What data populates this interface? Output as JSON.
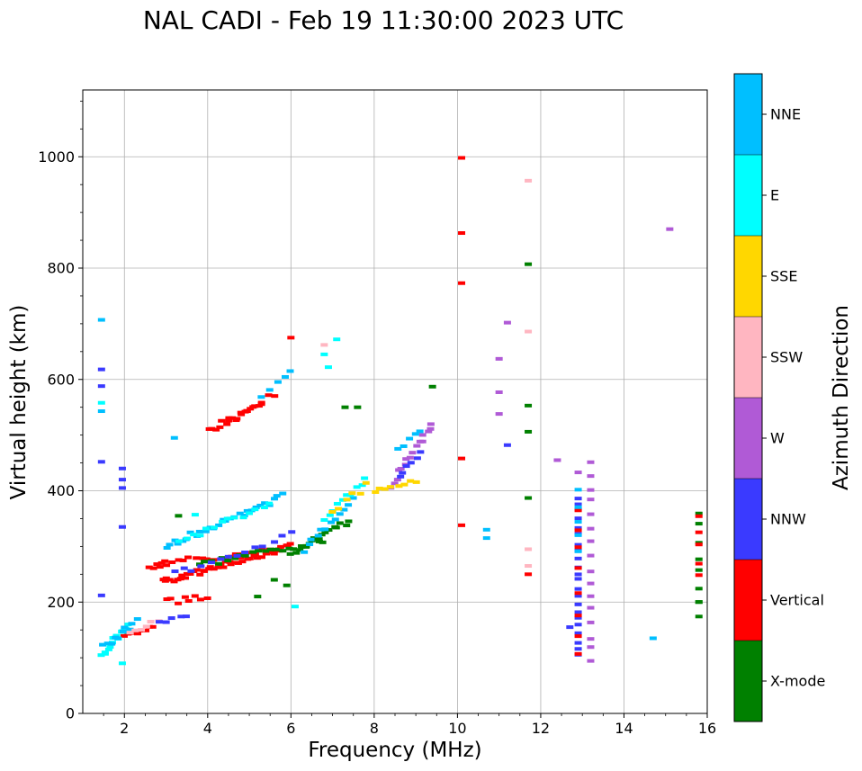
{
  "chart_data": {
    "type": "scatter",
    "title": "NAL CADI - Feb 19 11:30:00 2023 UTC",
    "xlabel": "Frequency (MHz)",
    "ylabel": "Virtual height (km)",
    "xlim": [
      1,
      16
    ],
    "ylim": [
      0,
      1120
    ],
    "xticks": [
      2,
      4,
      6,
      8,
      10,
      12,
      14,
      16
    ],
    "yticks": [
      0,
      200,
      400,
      600,
      800,
      1000
    ],
    "grid": true,
    "colorbar": {
      "label": "Azimuth Direction",
      "categories": [
        {
          "name": "X-mode",
          "color": "#008000"
        },
        {
          "name": "Vertical",
          "color": "#ff0000"
        },
        {
          "name": "NNW",
          "color": "#3a3aff"
        },
        {
          "name": "W",
          "color": "#b05ad6"
        },
        {
          "name": "SSW",
          "color": "#ffb6c1"
        },
        {
          "name": "SSE",
          "color": "#ffd700"
        },
        {
          "name": "E",
          "color": "#00ffff"
        },
        {
          "name": "NNE",
          "color": "#00bfff"
        }
      ]
    },
    "traces": [
      {
        "label": "Vertical",
        "x0": 2.0,
        "y0": 145,
        "x1": 2.7,
        "y1": 155,
        "n": 8
      },
      {
        "label": "E",
        "x0": 1.45,
        "y0": 105,
        "x1": 2.1,
        "y1": 160,
        "n": 14
      },
      {
        "label": "NNE",
        "x0": 1.5,
        "y0": 120,
        "x1": 2.3,
        "y1": 165,
        "n": 10
      },
      {
        "label": "SSW",
        "x0": 2.1,
        "y0": 150,
        "x1": 2.8,
        "y1": 165,
        "n": 6
      },
      {
        "label": "Vertical",
        "x0": 2.9,
        "y0": 235,
        "x1": 6.0,
        "y1": 300,
        "n": 45
      },
      {
        "label": "Vertical",
        "x0": 3.0,
        "y0": 270,
        "x1": 5.7,
        "y1": 295,
        "n": 20
      },
      {
        "label": "Vertical",
        "x0": 2.6,
        "y0": 260,
        "x1": 3.0,
        "y1": 270,
        "n": 6
      },
      {
        "label": "NNE",
        "x0": 3.0,
        "y0": 300,
        "x1": 5.8,
        "y1": 390,
        "n": 28
      },
      {
        "label": "E",
        "x0": 3.3,
        "y0": 310,
        "x1": 5.5,
        "y1": 375,
        "n": 14
      },
      {
        "label": "X-mode",
        "x0": 3.8,
        "y0": 265,
        "x1": 6.8,
        "y1": 310,
        "n": 22
      },
      {
        "label": "X-mode",
        "x0": 6.0,
        "y0": 290,
        "x1": 7.4,
        "y1": 345,
        "n": 16
      },
      {
        "label": "NNW",
        "x0": 3.2,
        "y0": 250,
        "x1": 6.0,
        "y1": 320,
        "n": 14
      },
      {
        "label": "NNE",
        "x0": 6.3,
        "y0": 290,
        "x1": 7.5,
        "y1": 385,
        "n": 12
      },
      {
        "label": "E",
        "x0": 6.8,
        "y0": 350,
        "x1": 7.8,
        "y1": 420,
        "n": 10
      },
      {
        "label": "SSE",
        "x0": 7.0,
        "y0": 360,
        "x1": 7.8,
        "y1": 410,
        "n": 6
      },
      {
        "label": "Vertical",
        "x0": 3.0,
        "y0": 200,
        "x1": 4.0,
        "y1": 210,
        "n": 8
      },
      {
        "label": "NNW",
        "x0": 2.8,
        "y0": 165,
        "x1": 3.5,
        "y1": 180,
        "n": 5
      },
      {
        "label": "Vertical",
        "x0": 4.0,
        "y0": 505,
        "x1": 5.3,
        "y1": 560,
        "n": 16
      },
      {
        "label": "Vertical",
        "x0": 4.5,
        "y0": 525,
        "x1": 5.6,
        "y1": 575,
        "n": 8
      },
      {
        "label": "NNE",
        "x0": 5.3,
        "y0": 570,
        "x1": 6.0,
        "y1": 610,
        "n": 5
      },
      {
        "label": "W",
        "x0": 8.4,
        "y0": 410,
        "x1": 9.4,
        "y1": 520,
        "n": 16
      },
      {
        "label": "SSE",
        "x0": 8.0,
        "y0": 395,
        "x1": 9.0,
        "y1": 420,
        "n": 8
      },
      {
        "label": "NNW",
        "x0": 8.6,
        "y0": 430,
        "x1": 9.1,
        "y1": 470,
        "n": 6
      },
      {
        "label": "NNE",
        "x0": 8.6,
        "y0": 470,
        "x1": 9.1,
        "y1": 510,
        "n": 5
      },
      {
        "label": "NNW",
        "x0": 12.9,
        "y0": 100,
        "x1": 12.9,
        "y1": 390,
        "n": 22
      },
      {
        "label": "Vertical",
        "x0": 12.9,
        "y0": 105,
        "x1": 12.9,
        "y1": 370,
        "n": 8
      },
      {
        "label": "W",
        "x0": 13.2,
        "y0": 90,
        "x1": 13.2,
        "y1": 455,
        "n": 16
      },
      {
        "label": "NNE",
        "x0": 12.9,
        "y0": 290,
        "x1": 12.9,
        "y1": 400,
        "n": 5
      },
      {
        "label": "X-mode",
        "x0": 15.8,
        "y0": 170,
        "x1": 15.8,
        "y1": 365,
        "n": 8
      },
      {
        "label": "Vertical",
        "x0": 15.8,
        "y0": 245,
        "x1": 15.8,
        "y1": 355,
        "n": 5
      }
    ],
    "points": [
      {
        "x": 1.45,
        "y": 707,
        "label": "NNE"
      },
      {
        "x": 1.45,
        "y": 618,
        "label": "NNW"
      },
      {
        "x": 1.45,
        "y": 588,
        "label": "NNW"
      },
      {
        "x": 1.45,
        "y": 558,
        "label": "E"
      },
      {
        "x": 1.45,
        "y": 543,
        "label": "NNE"
      },
      {
        "x": 1.45,
        "y": 452,
        "label": "NNW"
      },
      {
        "x": 1.45,
        "y": 212,
        "label": "NNW"
      },
      {
        "x": 1.95,
        "y": 440,
        "label": "NNW"
      },
      {
        "x": 1.95,
        "y": 420,
        "label": "NNW"
      },
      {
        "x": 1.95,
        "y": 405,
        "label": "NNW"
      },
      {
        "x": 1.95,
        "y": 335,
        "label": "NNW"
      },
      {
        "x": 1.95,
        "y": 90,
        "label": "E"
      },
      {
        "x": 10.1,
        "y": 998,
        "label": "Vertical"
      },
      {
        "x": 10.1,
        "y": 863,
        "label": "Vertical"
      },
      {
        "x": 10.1,
        "y": 773,
        "label": "Vertical"
      },
      {
        "x": 10.1,
        "y": 458,
        "label": "Vertical"
      },
      {
        "x": 10.1,
        "y": 338,
        "label": "Vertical"
      },
      {
        "x": 11.7,
        "y": 957,
        "label": "SSW"
      },
      {
        "x": 11.7,
        "y": 807,
        "label": "X-mode"
      },
      {
        "x": 11.2,
        "y": 702,
        "label": "W"
      },
      {
        "x": 11.7,
        "y": 686,
        "label": "SSW"
      },
      {
        "x": 11.0,
        "y": 637,
        "label": "W"
      },
      {
        "x": 11.0,
        "y": 577,
        "label": "W"
      },
      {
        "x": 11.7,
        "y": 553,
        "label": "X-mode"
      },
      {
        "x": 11.0,
        "y": 538,
        "label": "W"
      },
      {
        "x": 11.7,
        "y": 506,
        "label": "X-mode"
      },
      {
        "x": 11.2,
        "y": 482,
        "label": "NNW"
      },
      {
        "x": 9.4,
        "y": 587,
        "label": "X-mode"
      },
      {
        "x": 12.4,
        "y": 455,
        "label": "W"
      },
      {
        "x": 12.9,
        "y": 433,
        "label": "W"
      },
      {
        "x": 11.7,
        "y": 387,
        "label": "X-mode"
      },
      {
        "x": 10.7,
        "y": 330,
        "label": "NNE"
      },
      {
        "x": 10.7,
        "y": 315,
        "label": "NNE"
      },
      {
        "x": 11.7,
        "y": 295,
        "label": "SSW"
      },
      {
        "x": 11.7,
        "y": 265,
        "label": "SSW"
      },
      {
        "x": 11.7,
        "y": 250,
        "label": "Vertical"
      },
      {
        "x": 12.7,
        "y": 155,
        "label": "NNW"
      },
      {
        "x": 14.7,
        "y": 135,
        "label": "NNE"
      },
      {
        "x": 15.1,
        "y": 870,
        "label": "W"
      },
      {
        "x": 15.8,
        "y": 200,
        "label": "X-mode"
      },
      {
        "x": 6.0,
        "y": 675,
        "label": "Vertical"
      },
      {
        "x": 6.8,
        "y": 662,
        "label": "SSW"
      },
      {
        "x": 7.1,
        "y": 672,
        "label": "E"
      },
      {
        "x": 6.8,
        "y": 645,
        "label": "E"
      },
      {
        "x": 6.9,
        "y": 622,
        "label": "E"
      },
      {
        "x": 7.6,
        "y": 550,
        "label": "X-mode"
      },
      {
        "x": 7.3,
        "y": 550,
        "label": "X-mode"
      },
      {
        "x": 5.2,
        "y": 210,
        "label": "X-mode"
      },
      {
        "x": 5.6,
        "y": 240,
        "label": "X-mode"
      },
      {
        "x": 6.1,
        "y": 192,
        "label": "E"
      },
      {
        "x": 5.9,
        "y": 230,
        "label": "X-mode"
      },
      {
        "x": 3.2,
        "y": 495,
        "label": "NNE"
      },
      {
        "x": 3.3,
        "y": 355,
        "label": "X-mode"
      },
      {
        "x": 3.7,
        "y": 357,
        "label": "E"
      }
    ]
  }
}
